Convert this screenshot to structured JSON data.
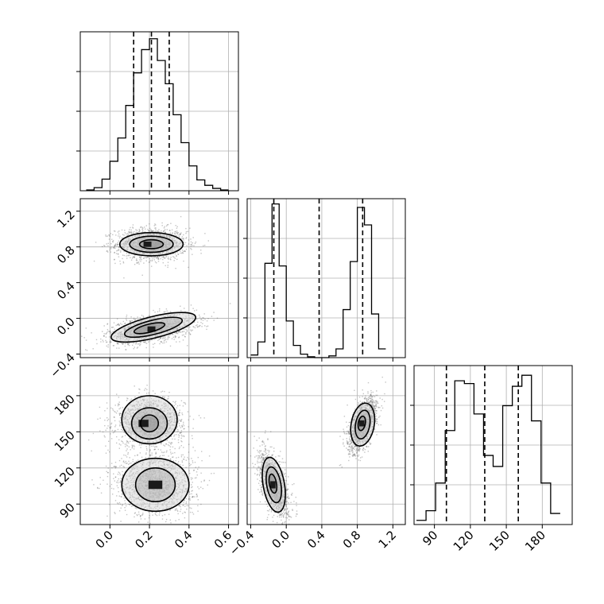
{
  "chart_data": {
    "type": "corner",
    "parameters": [
      {
        "range": [
          -0.15,
          0.65
        ],
        "ticks": [
          0.0,
          0.2,
          0.4,
          0.6
        ],
        "tick_labels": [
          "0.0",
          "0.2",
          "0.4",
          "0.6"
        ]
      },
      {
        "range": [
          -0.44,
          1.34
        ],
        "ticks": [
          -0.4,
          0.0,
          0.4,
          0.8,
          1.2
        ],
        "tick_labels": [
          "−0.4",
          "0.0",
          "0.4",
          "0.8",
          "1.2"
        ]
      },
      {
        "range": [
          73,
          205
        ],
        "ticks": [
          90,
          120,
          150,
          180
        ],
        "tick_labels": [
          "90",
          "120",
          "150",
          "180"
        ]
      }
    ],
    "histograms": [
      {
        "param": 0,
        "bins": [
          -0.12,
          -0.08,
          -0.04,
          0.0,
          0.04,
          0.08,
          0.12,
          0.16,
          0.2,
          0.24,
          0.28,
          0.32,
          0.36,
          0.4,
          0.44,
          0.48,
          0.52,
          0.56,
          0.6
        ],
        "counts": [
          1,
          4,
          15,
          38,
          68,
          110,
          152,
          182,
          196,
          168,
          138,
          98,
          62,
          32,
          14,
          7,
          3,
          1
        ],
        "ymax": 205,
        "quantiles": [
          0.12,
          0.21,
          0.3
        ]
      },
      {
        "param": 1,
        "bins": [
          -0.4,
          -0.32,
          -0.24,
          -0.16,
          -0.08,
          0.0,
          0.08,
          0.16,
          0.24,
          0.32,
          0.4,
          0.48,
          0.56,
          0.64,
          0.72,
          0.8,
          0.88,
          0.96,
          1.04,
          1.12
        ],
        "counts": [
          3,
          18,
          108,
          176,
          105,
          42,
          14,
          4,
          1,
          0,
          0,
          2,
          10,
          55,
          110,
          172,
          152,
          50,
          10
        ],
        "ymax": 182,
        "quantiles": [
          -0.14,
          0.37,
          0.86
        ]
      },
      {
        "param": 2,
        "bins": [
          75,
          83,
          91,
          99,
          107,
          115,
          123,
          131,
          139,
          147,
          155,
          163,
          171,
          179,
          187,
          195
        ],
        "counts": [
          3,
          10,
          30,
          68,
          104,
          102,
          80,
          50,
          42,
          86,
          100,
          108,
          75,
          30,
          8
        ],
        "ymax": 115,
        "quantiles": [
          100,
          132,
          160
        ]
      }
    ],
    "scatter_panels": [
      {
        "x_param": 0,
        "y_param": 1,
        "clusters": [
          {
            "x": 0.21,
            "y": 0.83,
            "sx": 0.09,
            "sy": 0.09,
            "n": 1500
          },
          {
            "x": 0.21,
            "y": -0.12,
            "sx": 0.11,
            "sy": 0.08,
            "rho": 0.45,
            "n": 1500
          }
        ],
        "contours": [
          {
            "x": 0.21,
            "y": 0.83,
            "rx": 0.16,
            "ry": 0.13,
            "angle": 0
          },
          {
            "x": 0.21,
            "y": 0.83,
            "rx": 0.11,
            "ry": 0.09,
            "angle": 0
          },
          {
            "x": 0.21,
            "y": 0.83,
            "rx": 0.06,
            "ry": 0.05,
            "angle": 0
          },
          {
            "x": 0.22,
            "y": -0.1,
            "rx": 0.22,
            "ry": 0.12,
            "angle": 14
          },
          {
            "x": 0.22,
            "y": -0.1,
            "rx": 0.15,
            "ry": 0.08,
            "angle": 14
          },
          {
            "x": 0.2,
            "y": -0.11,
            "rx": 0.08,
            "ry": 0.045,
            "angle": 14
          }
        ],
        "peaks": [
          {
            "x": 0.19,
            "y": 0.83,
            "w": 0.04,
            "h": 0.06
          },
          {
            "x": 0.21,
            "y": -0.12,
            "w": 0.04,
            "h": 0.06
          }
        ]
      },
      {
        "x_param": 0,
        "y_param": 2,
        "clusters": [
          {
            "x": 0.2,
            "y": 158,
            "sx": 0.085,
            "sy": 10,
            "n": 1500
          },
          {
            "x": 0.23,
            "y": 106,
            "sx": 0.1,
            "sy": 13,
            "n": 1500
          }
        ],
        "contours": [
          {
            "x": 0.2,
            "y": 160,
            "rx": 0.14,
            "ry": 20,
            "angle": 0
          },
          {
            "x": 0.2,
            "y": 157,
            "rx": 0.09,
            "ry": 13,
            "angle": 0
          },
          {
            "x": 0.2,
            "y": 157,
            "rx": 0.045,
            "ry": 7,
            "angle": 0
          },
          {
            "x": 0.23,
            "y": 106,
            "rx": 0.17,
            "ry": 22,
            "angle": 0
          },
          {
            "x": 0.23,
            "y": 106,
            "rx": 0.1,
            "ry": 14,
            "angle": 0
          }
        ],
        "peaks": [
          {
            "x": 0.17,
            "y": 157,
            "w": 0.05,
            "h": 6
          },
          {
            "x": 0.23,
            "y": 106,
            "w": 0.07,
            "h": 7
          }
        ]
      },
      {
        "x_param": 1,
        "y_param": 2,
        "clusters": [
          {
            "x": -0.14,
            "y": 106,
            "sx": 0.08,
            "sy": 13,
            "rho": -0.55,
            "n": 1500
          },
          {
            "x": 0.86,
            "y": 156,
            "sx": 0.08,
            "sy": 11,
            "rho": 0.55,
            "n": 1500
          }
        ],
        "contours": [
          {
            "x": -0.14,
            "y": 106,
            "rx": 0.12,
            "ry": 23,
            "angle": 10
          },
          {
            "x": -0.14,
            "y": 106,
            "rx": 0.08,
            "ry": 15,
            "angle": 10
          },
          {
            "x": -0.15,
            "y": 107,
            "rx": 0.04,
            "ry": 8,
            "angle": 10
          },
          {
            "x": 0.86,
            "y": 156,
            "rx": 0.13,
            "ry": 18,
            "angle": -10
          },
          {
            "x": 0.86,
            "y": 156,
            "rx": 0.08,
            "ry": 12,
            "angle": -10
          },
          {
            "x": 0.85,
            "y": 157,
            "rx": 0.04,
            "ry": 6,
            "angle": -10
          }
        ],
        "peaks": [
          {
            "x": -0.15,
            "y": 106,
            "w": 0.06,
            "h": 6
          },
          {
            "x": 0.85,
            "y": 157,
            "w": 0.06,
            "h": 5
          }
        ]
      }
    ]
  }
}
